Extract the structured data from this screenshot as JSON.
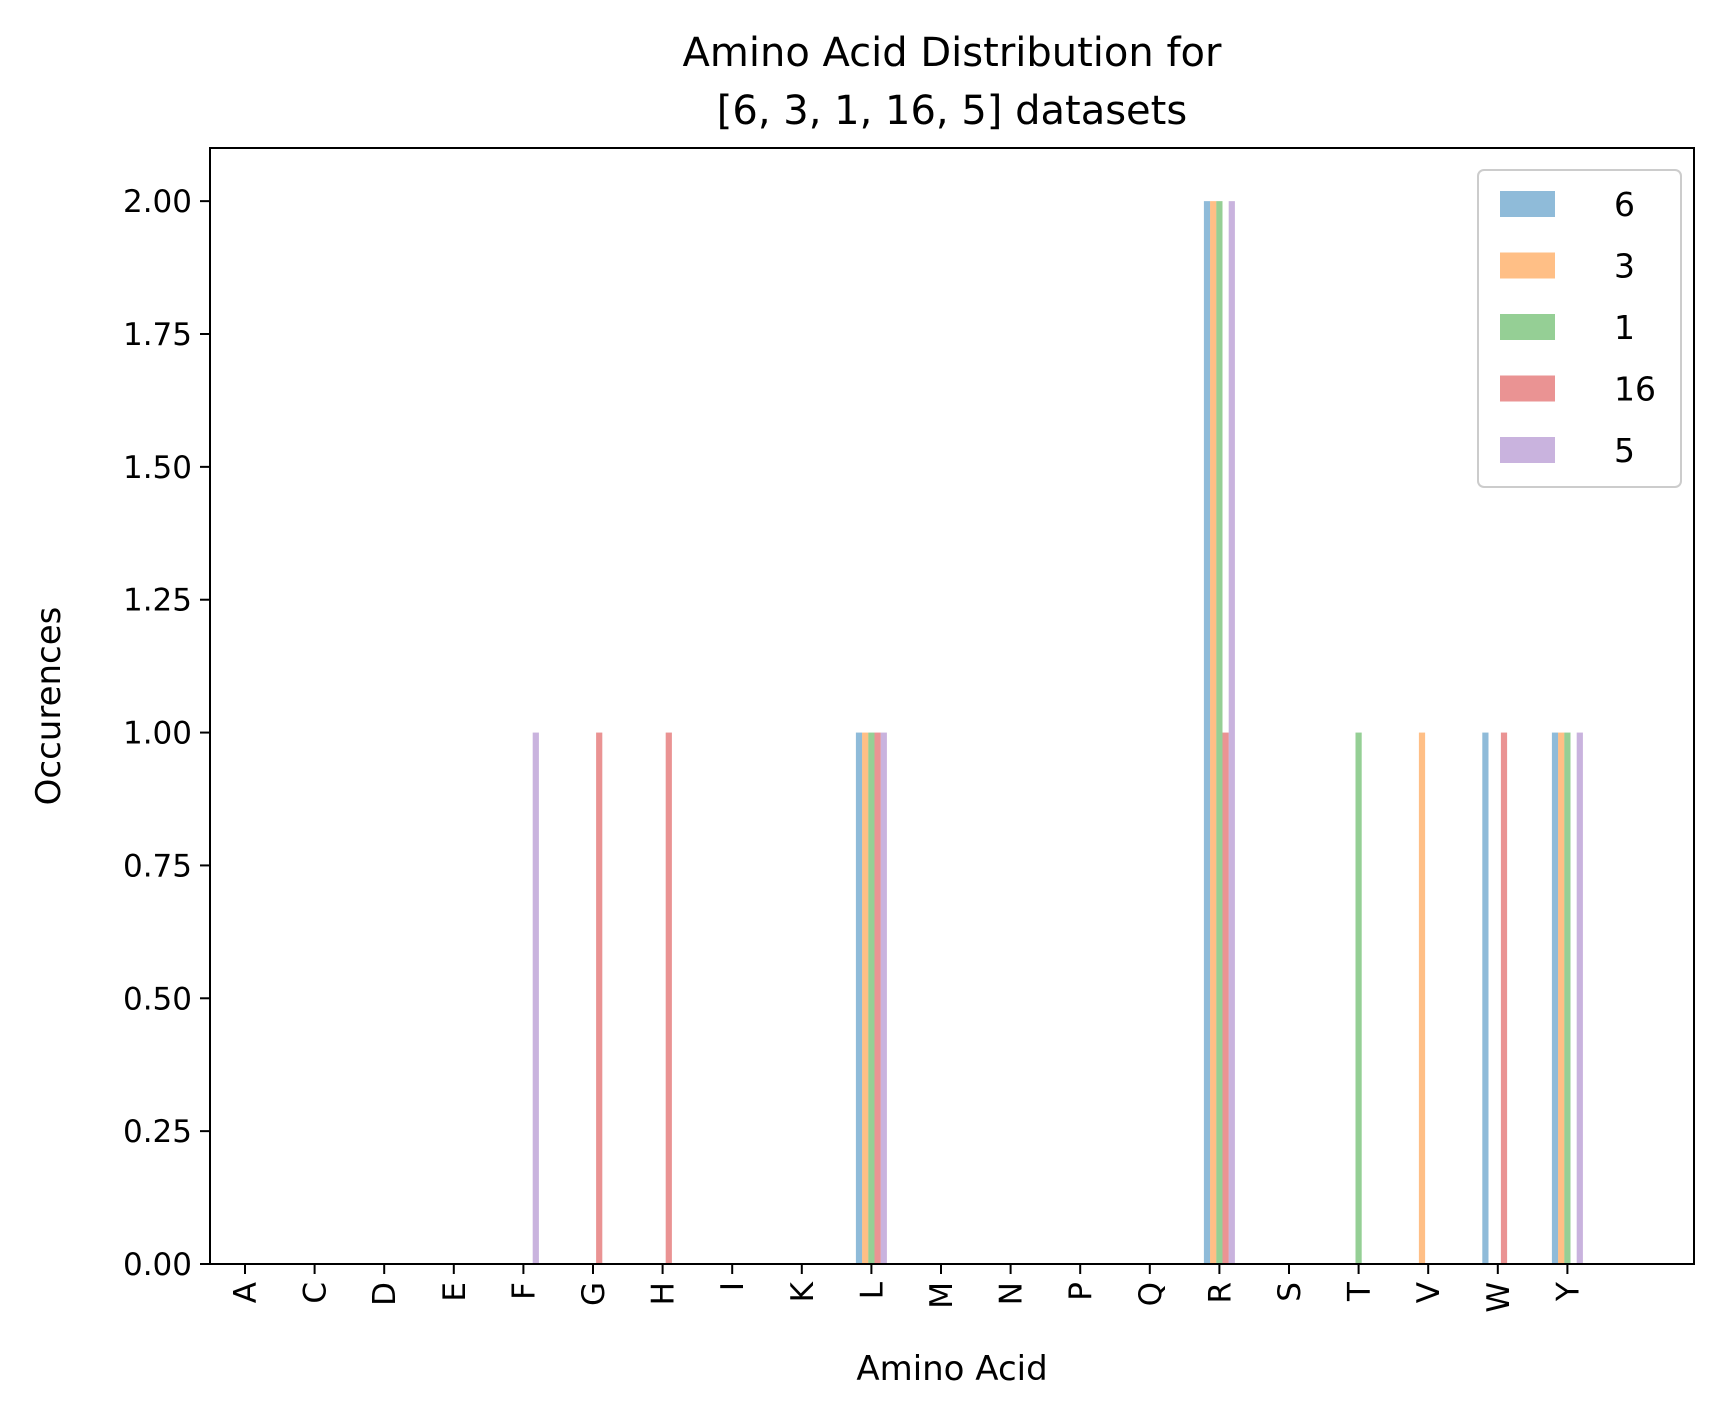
{
  "chart_data": {
    "type": "bar",
    "title_lines": [
      "Amino Acid Distribution for",
      "[6, 3, 1, 16, 5] datasets"
    ],
    "xlabel": "Amino Acid",
    "ylabel": "Occurences",
    "ylim": [
      0,
      2.1
    ],
    "yticks": [
      "0.00",
      "0.25",
      "0.50",
      "0.75",
      "1.00",
      "1.25",
      "1.50",
      "1.75",
      "2.00"
    ],
    "categories": [
      "A",
      "C",
      "D",
      "E",
      "F",
      "G",
      "H",
      "I",
      "K",
      "L",
      "M",
      "N",
      "P",
      "Q",
      "R",
      "S",
      "T",
      "V",
      "W",
      "Y"
    ],
    "series": [
      {
        "name": "6",
        "color": "#1f77b4",
        "values": [
          0,
          0,
          0,
          0,
          0,
          0,
          0,
          0,
          0,
          1,
          0,
          0,
          0,
          0,
          2,
          0,
          0,
          0,
          1,
          1
        ]
      },
      {
        "name": "3",
        "color": "#ff7f0e",
        "values": [
          0,
          0,
          0,
          0,
          0,
          0,
          0,
          0,
          0,
          1,
          0,
          0,
          0,
          0,
          2,
          0,
          0,
          1,
          0,
          1
        ]
      },
      {
        "name": "1",
        "color": "#2ca02c",
        "values": [
          0,
          0,
          0,
          0,
          0,
          0,
          0,
          0,
          0,
          1,
          0,
          0,
          0,
          0,
          2,
          0,
          1,
          0,
          0,
          1
        ]
      },
      {
        "name": "16",
        "color": "#d62728",
        "values": [
          0,
          0,
          0,
          0,
          0,
          1,
          1,
          0,
          0,
          1,
          0,
          0,
          0,
          0,
          1,
          0,
          0,
          0,
          1,
          0
        ]
      },
      {
        "name": "5",
        "color": "#9467bd",
        "values": [
          0,
          0,
          0,
          0,
          1,
          0,
          0,
          0,
          0,
          1,
          0,
          0,
          0,
          0,
          2,
          0,
          0,
          0,
          0,
          1
        ]
      }
    ],
    "bar_opacity": 0.5,
    "grid": false,
    "legend_position": "top-right"
  }
}
